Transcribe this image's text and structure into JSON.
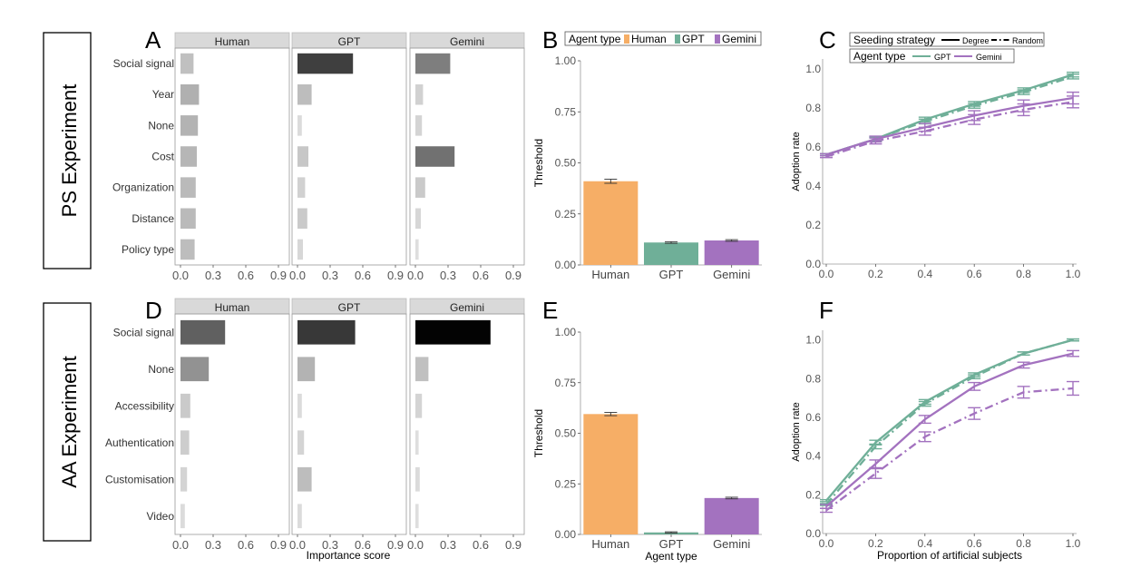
{
  "experiments": [
    {
      "key": "PS",
      "label": "PS Experiment"
    },
    {
      "key": "AA",
      "label": "AA Experiment"
    }
  ],
  "x_common_label": "Importance score",
  "colors": {
    "human": "#F6AE66",
    "gpt": "#6FAF98",
    "gemini": "#A372BF",
    "strip": "#D9D9D9",
    "axis": "#9A9A9A"
  },
  "chart_data": [
    {
      "panel": "A",
      "type": "bar",
      "orientation": "horizontal",
      "facets": [
        "Human",
        "GPT",
        "Gemini"
      ],
      "categories": [
        "Social signal",
        "Year",
        "None",
        "Cost",
        "Organization",
        "Distance",
        "Policy type"
      ],
      "series": [
        {
          "name": "Human",
          "values": [
            0.12,
            0.17,
            0.16,
            0.15,
            0.14,
            0.14,
            0.13
          ]
        },
        {
          "name": "GPT",
          "values": [
            0.51,
            0.13,
            0.04,
            0.1,
            0.07,
            0.09,
            0.05
          ]
        },
        {
          "name": "Gemini",
          "values": [
            0.32,
            0.07,
            0.06,
            0.36,
            0.09,
            0.05,
            0.03
          ]
        }
      ],
      "xticks": [
        "0.0",
        "0.3",
        "0.6",
        "0.9"
      ],
      "xlim": [
        0,
        1.05
      ],
      "xlabel": ""
    },
    {
      "panel": "B",
      "type": "bar",
      "legend_title": "Agent type",
      "legend_entries": [
        "Human",
        "GPT",
        "Gemini"
      ],
      "categories": [
        "Human",
        "GPT",
        "Gemini"
      ],
      "values": [
        0.41,
        0.11,
        0.12
      ],
      "errors": [
        0.01,
        0.004,
        0.004
      ],
      "ylabel": "Threshold",
      "xlabel": "",
      "ylim": [
        0,
        1
      ],
      "yticks": [
        "0.00",
        "0.25",
        "0.50",
        "0.75",
        "1.00"
      ]
    },
    {
      "panel": "C",
      "type": "line",
      "legend_seed_title": "Seeding strategy",
      "legend_seed_entries": [
        "Degree",
        "Random"
      ],
      "legend_agent_title": "Agent type",
      "legend_agent_entries": [
        "GPT",
        "Gemini"
      ],
      "x": [
        0,
        0.2,
        0.4,
        0.6,
        0.8,
        1.0
      ],
      "series": [
        {
          "name": "GPT Degree",
          "agent": "GPT",
          "strategy": "Degree",
          "values": [
            0.56,
            0.64,
            0.74,
            0.82,
            0.89,
            0.97
          ],
          "errors": [
            0.005,
            0.01,
            0.012,
            0.012,
            0.012,
            0.012
          ]
        },
        {
          "name": "GPT Random",
          "agent": "GPT",
          "strategy": "Random",
          "values": [
            0.56,
            0.64,
            0.73,
            0.81,
            0.88,
            0.96
          ],
          "errors": [
            0.005,
            0.01,
            0.012,
            0.012,
            0.012,
            0.012
          ]
        },
        {
          "name": "Gemini Degree",
          "agent": "Gemini",
          "strategy": "Degree",
          "values": [
            0.56,
            0.64,
            0.7,
            0.76,
            0.81,
            0.85
          ],
          "errors": [
            0.005,
            0.015,
            0.02,
            0.025,
            0.03,
            0.03
          ]
        },
        {
          "name": "Gemini Random",
          "agent": "Gemini",
          "strategy": "Random",
          "values": [
            0.55,
            0.63,
            0.68,
            0.74,
            0.79,
            0.83
          ],
          "errors": [
            0.005,
            0.015,
            0.02,
            0.025,
            0.03,
            0.03
          ]
        }
      ],
      "ylabel": "Adoption rate",
      "xlabel": "",
      "xlim": [
        0,
        1
      ],
      "ylim": [
        0,
        1.05
      ],
      "xticks": [
        "0.0",
        "0.2",
        "0.4",
        "0.6",
        "0.8",
        "1.0"
      ],
      "yticks": [
        "0.0",
        "0.2",
        "0.4",
        "0.6",
        "0.8",
        "1.0"
      ]
    },
    {
      "panel": "D",
      "type": "bar",
      "orientation": "horizontal",
      "facets": [
        "Human",
        "GPT",
        "Gemini"
      ],
      "categories": [
        "Social signal",
        "None",
        "Accessibility",
        "Authentication",
        "Customisation",
        "Video"
      ],
      "series": [
        {
          "name": "Human",
          "values": [
            0.41,
            0.26,
            0.09,
            0.08,
            0.06,
            0.04
          ]
        },
        {
          "name": "GPT",
          "values": [
            0.53,
            0.16,
            0.04,
            0.06,
            0.13,
            0.04
          ]
        },
        {
          "name": "Gemini",
          "values": [
            0.69,
            0.12,
            0.06,
            0.03,
            0.04,
            0.03
          ]
        }
      ],
      "xticks": [
        "0.0",
        "0.3",
        "0.6",
        "0.9"
      ],
      "xlim": [
        0,
        1.05
      ],
      "xlabel": "Importance score"
    },
    {
      "panel": "E",
      "type": "bar",
      "categories": [
        "Human",
        "GPT",
        "Gemini"
      ],
      "values": [
        0.595,
        0.01,
        0.18
      ],
      "errors": [
        0.008,
        0.003,
        0.004
      ],
      "ylabel": "Threshold",
      "xlabel": "Agent type",
      "ylim": [
        0,
        1
      ],
      "yticks": [
        "0.00",
        "0.25",
        "0.50",
        "0.75",
        "1.00"
      ]
    },
    {
      "panel": "F",
      "type": "line",
      "x": [
        0,
        0.2,
        0.4,
        0.6,
        0.8,
        1.0
      ],
      "series": [
        {
          "name": "GPT Degree",
          "agent": "GPT",
          "strategy": "Degree",
          "values": [
            0.17,
            0.47,
            0.68,
            0.82,
            0.93,
            1.0
          ],
          "errors": [
            0.005,
            0.012,
            0.012,
            0.01,
            0.008,
            0.005
          ]
        },
        {
          "name": "GPT Random",
          "agent": "GPT",
          "strategy": "Random",
          "values": [
            0.15,
            0.45,
            0.67,
            0.81,
            0.93,
            1.0
          ],
          "errors": [
            0.005,
            0.012,
            0.012,
            0.01,
            0.008,
            0.005
          ]
        },
        {
          "name": "Gemini Degree",
          "agent": "Gemini",
          "strategy": "Degree",
          "values": [
            0.14,
            0.36,
            0.59,
            0.76,
            0.87,
            0.93
          ],
          "errors": [
            0.01,
            0.02,
            0.02,
            0.02,
            0.015,
            0.015
          ]
        },
        {
          "name": "Gemini Random",
          "agent": "Gemini",
          "strategy": "Random",
          "values": [
            0.12,
            0.31,
            0.5,
            0.62,
            0.73,
            0.75
          ],
          "errors": [
            0.01,
            0.025,
            0.025,
            0.03,
            0.03,
            0.035
          ]
        }
      ],
      "ylabel": "Adoption rate",
      "xlabel": "Proportion of artificial subjects",
      "xlim": [
        0,
        1
      ],
      "ylim": [
        0,
        1.05
      ],
      "xticks": [
        "0.0",
        "0.2",
        "0.4",
        "0.6",
        "0.8",
        "1.0"
      ],
      "yticks": [
        "0.0",
        "0.2",
        "0.4",
        "0.6",
        "0.8",
        "1.0"
      ]
    }
  ]
}
